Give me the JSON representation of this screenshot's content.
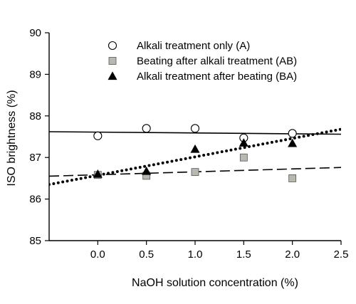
{
  "chart_data": {
    "type": "scatter",
    "title": "",
    "xlabel": "NaOH solution concentration (%)",
    "ylabel": "ISO brightness (%)",
    "xlim": [
      -0.5,
      2.5
    ],
    "ylim": [
      85,
      90
    ],
    "x_ticks": [
      0.0,
      0.5,
      1.0,
      1.5,
      2.0,
      2.5
    ],
    "x_tick_labels": [
      "0.0",
      "0.5",
      "1.0",
      "1.5",
      "2.0",
      "2.5"
    ],
    "y_ticks": [
      85,
      86,
      87,
      88,
      89,
      90
    ],
    "y_tick_labels": [
      "85",
      "86",
      "87",
      "88",
      "89",
      "90"
    ],
    "grid": false,
    "legend_position": "top-right",
    "series": [
      {
        "name": "Alkali treatment only (A)",
        "marker": "circle-open",
        "color": "#ffffff",
        "stroke": "#000000",
        "trendline_style": "solid",
        "x": [
          0.0,
          0.5,
          1.0,
          1.5,
          2.0
        ],
        "y": [
          87.52,
          87.7,
          87.7,
          87.47,
          87.58
        ],
        "trendline": {
          "x": [
            -0.5,
            2.5
          ],
          "y": [
            87.62,
            87.56
          ]
        }
      },
      {
        "name": "Beating after alkali treatment (AB)",
        "marker": "square-filled",
        "color": "#b8b8b0",
        "stroke": "#555555",
        "trendline_style": "dashed",
        "x": [
          0.0,
          0.5,
          1.0,
          1.5,
          2.0
        ],
        "y": [
          86.58,
          86.56,
          86.65,
          87.0,
          86.5
        ],
        "trendline": {
          "x": [
            -0.5,
            2.5
          ],
          "y": [
            86.55,
            86.76
          ]
        }
      },
      {
        "name": "Alkali treatment after beating (BA)",
        "marker": "triangle-filled",
        "color": "#000000",
        "stroke": "#000000",
        "trendline_style": "dotted",
        "x": [
          0.0,
          0.5,
          1.0,
          1.5,
          2.0
        ],
        "y": [
          86.6,
          86.67,
          87.2,
          87.35,
          87.34
        ],
        "trendline": {
          "x": [
            -0.5,
            2.5
          ],
          "y": [
            86.35,
            87.68
          ]
        }
      }
    ]
  }
}
